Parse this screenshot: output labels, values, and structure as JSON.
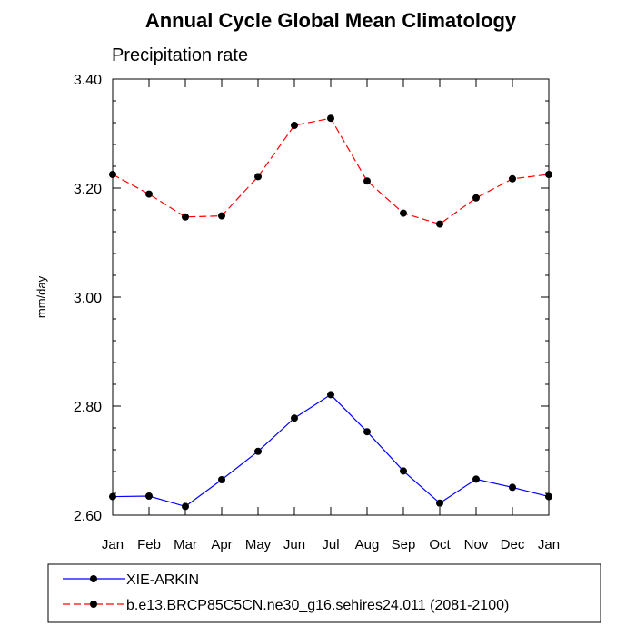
{
  "chart_data": {
    "type": "line",
    "title": "Annual Cycle Global Mean Climatology",
    "subtitle": "Precipitation rate",
    "ylabel": "mm/day",
    "xlabel": "",
    "categories": [
      "Jan",
      "Feb",
      "Mar",
      "Apr",
      "May",
      "Jun",
      "Jul",
      "Aug",
      "Sep",
      "Oct",
      "Nov",
      "Dec",
      "Jan"
    ],
    "ylim": [
      2.6,
      3.4
    ],
    "yticks": [
      "2.60",
      "2.80",
      "3.00",
      "3.20",
      "3.40"
    ],
    "legend_position": "bottom",
    "grid": false,
    "series": [
      {
        "name": "XIE-ARKIN",
        "color": "#0000ff",
        "linestyle": "solid",
        "marker": "dot",
        "values": [
          2.634,
          2.635,
          2.616,
          2.665,
          2.717,
          2.778,
          2.821,
          2.753,
          2.681,
          2.622,
          2.666,
          2.651,
          2.634
        ]
      },
      {
        "name": "b.e13.BRCP85C5CN.ne30_g16.sehires24.011 (2081-2100)",
        "color": "#ff0000",
        "linestyle": "dashed",
        "marker": "dot",
        "values": [
          3.225,
          3.189,
          3.147,
          3.149,
          3.221,
          3.315,
          3.328,
          3.213,
          3.154,
          3.134,
          3.182,
          3.217,
          3.225
        ]
      }
    ]
  }
}
